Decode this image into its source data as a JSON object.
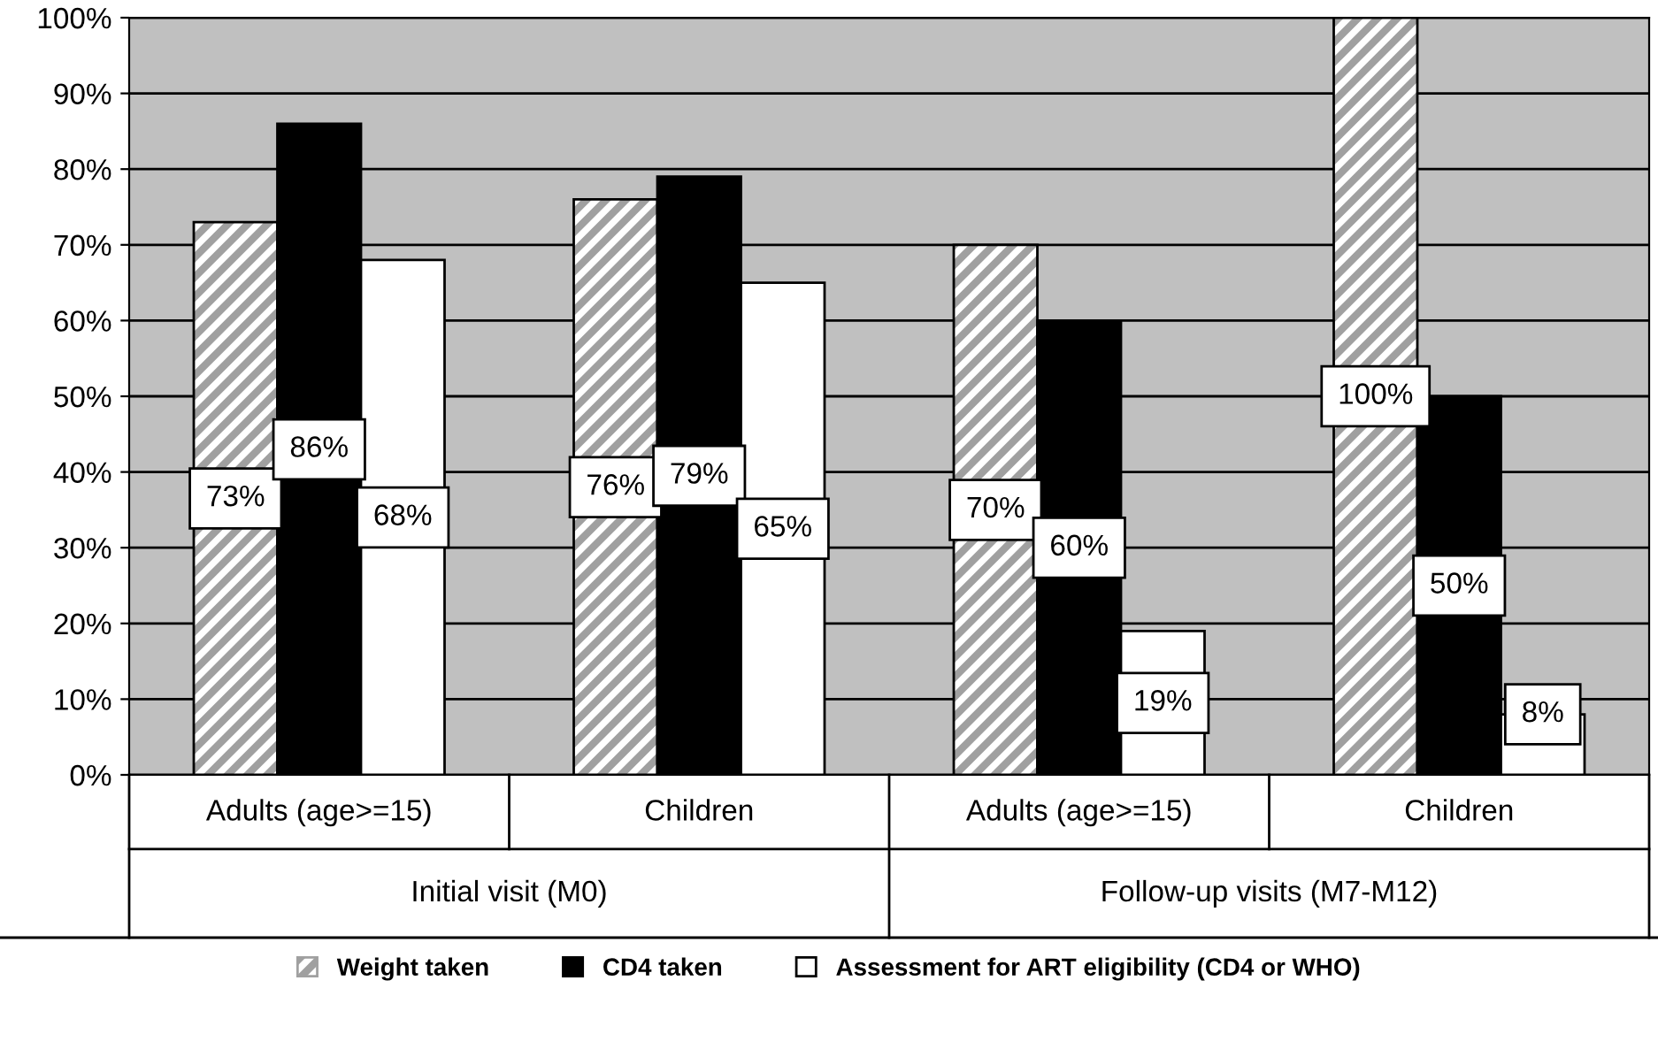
{
  "chart_data": {
    "type": "bar",
    "categories": [
      "Adults (age>=15)",
      "Children",
      "Adults (age>=15)",
      "Children"
    ],
    "annotations": [
      "Initial visit (M0)",
      "Follow-up visits (M7-M12)"
    ],
    "series": [
      {
        "name": "Weight taken",
        "color": "#a0a0a0",
        "values": [
          73,
          76,
          70,
          100
        ],
        "value_labels": [
          "73%",
          "76%",
          "70%",
          "100%"
        ]
      },
      {
        "name": "CD4 taken",
        "color": "#000000",
        "values": [
          86,
          79,
          60,
          50
        ],
        "value_labels": [
          "86%",
          "79%",
          "60%",
          "50%"
        ]
      },
      {
        "name": "Assessment for ART eligibility (CD4 or WHO)",
        "color": "#ffffff",
        "values": [
          68,
          65,
          19,
          8
        ],
        "value_labels": [
          "68%",
          "65%",
          "19%",
          "8%"
        ]
      }
    ],
    "ylim": [
      0,
      100
    ],
    "yticks": [
      {
        "value": 0,
        "label": "0%"
      },
      {
        "value": 10,
        "label": "10%"
      },
      {
        "value": 20,
        "label": "20%"
      },
      {
        "value": 30,
        "label": "30%"
      },
      {
        "value": 40,
        "label": "40%"
      },
      {
        "value": 50,
        "label": "50%"
      },
      {
        "value": 60,
        "label": "60%"
      },
      {
        "value": 70,
        "label": "70%"
      },
      {
        "value": 80,
        "label": "80%"
      },
      {
        "value": 90,
        "label": "90%"
      },
      {
        "value": 100,
        "label": "100%"
      }
    ],
    "grid": "y",
    "legend": "bottom"
  }
}
